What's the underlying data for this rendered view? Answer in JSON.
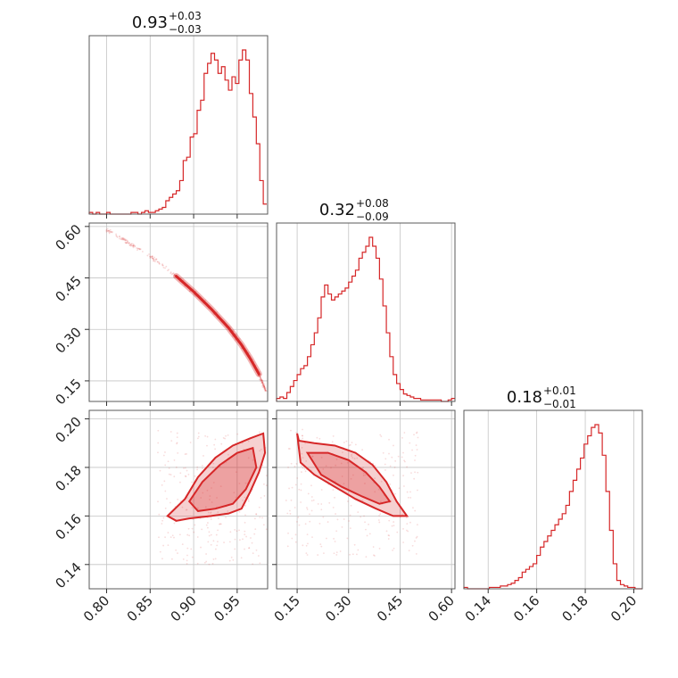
{
  "chart_data": {
    "type": "corner",
    "colors": {
      "series": "#d62728",
      "frame": "#595959",
      "grid": "#c4c4c4"
    },
    "grid": true,
    "parameters": [
      {
        "ticks": [
          "0.80",
          "0.85",
          "0.90",
          "0.95"
        ],
        "range": [
          0.78,
          0.985
        ]
      },
      {
        "ticks": [
          "0.15",
          "0.30",
          "0.45",
          "0.60"
        ],
        "range": [
          0.09,
          0.61
        ]
      },
      {
        "ticks": [
          "0.14",
          "0.16",
          "0.18",
          "0.20"
        ],
        "range": [
          0.13,
          0.2035
        ]
      }
    ],
    "titles": [
      {
        "value": "0.93",
        "plus": "+0.03",
        "minus": "−0.03"
      },
      {
        "value": "0.32",
        "plus": "+0.08",
        "minus": "−0.09"
      },
      {
        "value": "0.18",
        "plus": "+0.01",
        "minus": "−0.01"
      }
    ],
    "histograms": [
      {
        "x": [
          0.78,
          0.784,
          0.788,
          0.792,
          0.796,
          0.8,
          0.804,
          0.808,
          0.812,
          0.816,
          0.82,
          0.824,
          0.828,
          0.832,
          0.836,
          0.84,
          0.844,
          0.848,
          0.852,
          0.856,
          0.86,
          0.864,
          0.868,
          0.872,
          0.876,
          0.88,
          0.884,
          0.888,
          0.892,
          0.896,
          0.9,
          0.904,
          0.908,
          0.912,
          0.916,
          0.92,
          0.924,
          0.928,
          0.932,
          0.936,
          0.94,
          0.944,
          0.948,
          0.952,
          0.956,
          0.96,
          0.964,
          0.968,
          0.972,
          0.976,
          0.98
        ],
        "counts": [
          1,
          0,
          1,
          0,
          0,
          1,
          0,
          0,
          0,
          0,
          0,
          0,
          1,
          1,
          0,
          1,
          2,
          1,
          1,
          2,
          3,
          4,
          8,
          10,
          12,
          14,
          20,
          32,
          34,
          46,
          48,
          62,
          68,
          84,
          90,
          96,
          92,
          84,
          88,
          80,
          74,
          82,
          78,
          92,
          98,
          92,
          72,
          58,
          42,
          20,
          6
        ]
      },
      {
        "x": [
          0.09,
          0.1,
          0.11,
          0.12,
          0.13,
          0.14,
          0.15,
          0.16,
          0.17,
          0.18,
          0.19,
          0.2,
          0.21,
          0.22,
          0.23,
          0.24,
          0.25,
          0.26,
          0.27,
          0.28,
          0.29,
          0.3,
          0.31,
          0.32,
          0.33,
          0.34,
          0.35,
          0.36,
          0.37,
          0.38,
          0.39,
          0.4,
          0.41,
          0.42,
          0.43,
          0.44,
          0.45,
          0.46,
          0.47,
          0.48,
          0.49,
          0.5,
          0.51,
          0.52,
          0.53,
          0.54,
          0.55,
          0.56,
          0.57,
          0.58,
          0.59,
          0.6
        ],
        "counts": [
          2,
          3,
          2,
          6,
          10,
          14,
          18,
          22,
          24,
          30,
          38,
          46,
          56,
          70,
          78,
          72,
          68,
          70,
          72,
          74,
          76,
          80,
          84,
          88,
          96,
          100,
          104,
          110,
          104,
          96,
          82,
          64,
          46,
          30,
          18,
          12,
          8,
          5,
          4,
          3,
          2,
          2,
          1,
          1,
          1,
          1,
          1,
          1,
          0,
          0,
          1,
          2
        ]
      },
      {
        "x": [
          0.13,
          0.1315,
          0.133,
          0.1345,
          0.136,
          0.1375,
          0.139,
          0.1405,
          0.142,
          0.1435,
          0.145,
          0.1465,
          0.148,
          0.1495,
          0.151,
          0.1525,
          0.154,
          0.1555,
          0.157,
          0.1585,
          0.16,
          0.1615,
          0.163,
          0.1645,
          0.166,
          0.1675,
          0.169,
          0.1705,
          0.172,
          0.1735,
          0.175,
          0.1765,
          0.178,
          0.1795,
          0.181,
          0.1825,
          0.184,
          0.1855,
          0.187,
          0.1885,
          0.19,
          0.1915,
          0.193,
          0.1945,
          0.196,
          0.1975,
          0.199,
          0.2005,
          0.202
        ],
        "counts": [
          1,
          0,
          0,
          0,
          0,
          0,
          0,
          1,
          1,
          1,
          2,
          2,
          3,
          4,
          6,
          8,
          12,
          14,
          16,
          18,
          24,
          30,
          34,
          38,
          42,
          46,
          50,
          54,
          60,
          70,
          78,
          86,
          94,
          104,
          110,
          116,
          118,
          112,
          96,
          70,
          42,
          18,
          6,
          3,
          2,
          1,
          1,
          0,
          0
        ]
      }
    ],
    "scatter_pairs": [
      {
        "x_param": 0,
        "y_param": 1,
        "curve": [
          [
            0.8,
            0.59
          ],
          [
            0.82,
            0.56
          ],
          [
            0.84,
            0.53
          ],
          [
            0.86,
            0.495
          ],
          [
            0.88,
            0.455
          ],
          [
            0.9,
            0.41
          ],
          [
            0.92,
            0.36
          ],
          [
            0.94,
            0.305
          ],
          [
            0.955,
            0.255
          ],
          [
            0.965,
            0.215
          ],
          [
            0.975,
            0.17
          ],
          [
            0.983,
            0.12
          ]
        ],
        "contour_band": [
          0.88,
          0.975
        ]
      },
      {
        "x_param": 0,
        "y_param": 2,
        "contour_outer": [
          [
            0.87,
            0.16
          ],
          [
            0.89,
            0.167
          ],
          [
            0.905,
            0.176
          ],
          [
            0.925,
            0.184
          ],
          [
            0.945,
            0.189
          ],
          [
            0.965,
            0.192
          ],
          [
            0.98,
            0.194
          ],
          [
            0.982,
            0.186
          ],
          [
            0.975,
            0.178
          ],
          [
            0.965,
            0.17
          ],
          [
            0.955,
            0.163
          ],
          [
            0.94,
            0.161
          ],
          [
            0.92,
            0.16
          ],
          [
            0.895,
            0.159
          ],
          [
            0.88,
            0.158
          ],
          [
            0.87,
            0.16
          ]
        ],
        "contour_inner": [
          [
            0.895,
            0.166
          ],
          [
            0.91,
            0.174
          ],
          [
            0.93,
            0.181
          ],
          [
            0.95,
            0.186
          ],
          [
            0.968,
            0.188
          ],
          [
            0.972,
            0.18
          ],
          [
            0.96,
            0.171
          ],
          [
            0.945,
            0.165
          ],
          [
            0.925,
            0.163
          ],
          [
            0.905,
            0.162
          ],
          [
            0.895,
            0.166
          ]
        ]
      },
      {
        "x_param": 1,
        "y_param": 2,
        "contour_outer": [
          [
            0.15,
            0.194
          ],
          [
            0.155,
            0.191
          ],
          [
            0.2,
            0.19
          ],
          [
            0.26,
            0.189
          ],
          [
            0.32,
            0.186
          ],
          [
            0.37,
            0.181
          ],
          [
            0.41,
            0.174
          ],
          [
            0.44,
            0.166
          ],
          [
            0.47,
            0.16
          ],
          [
            0.43,
            0.16
          ],
          [
            0.38,
            0.163
          ],
          [
            0.32,
            0.167
          ],
          [
            0.26,
            0.172
          ],
          [
            0.2,
            0.177
          ],
          [
            0.16,
            0.182
          ],
          [
            0.15,
            0.194
          ]
        ],
        "contour_inner": [
          [
            0.18,
            0.186
          ],
          [
            0.24,
            0.186
          ],
          [
            0.3,
            0.183
          ],
          [
            0.35,
            0.178
          ],
          [
            0.39,
            0.172
          ],
          [
            0.42,
            0.166
          ],
          [
            0.39,
            0.165
          ],
          [
            0.34,
            0.168
          ],
          [
            0.28,
            0.172
          ],
          [
            0.22,
            0.177
          ],
          [
            0.18,
            0.186
          ]
        ]
      }
    ]
  }
}
